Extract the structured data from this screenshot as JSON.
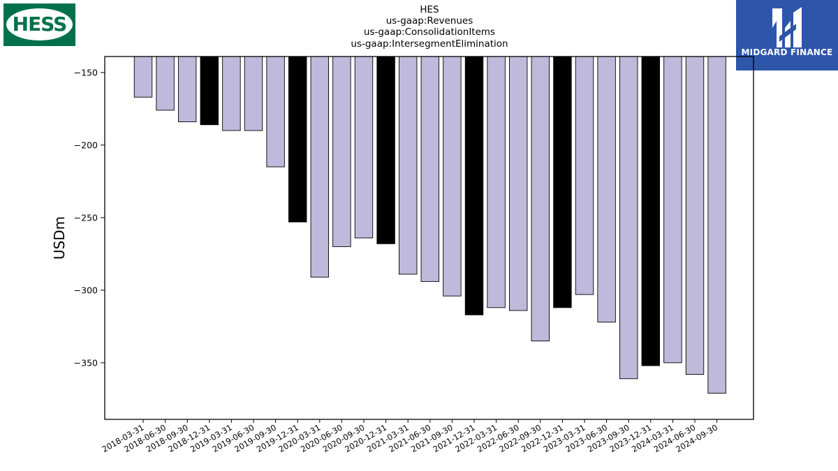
{
  "header": {
    "company": "HES",
    "concept": "us-gaap:Revenues",
    "axis": "us-gaap:ConsolidationItems",
    "member": "us-gaap:IntersegmentElimination"
  },
  "logos": {
    "left_text": "HESS",
    "right_text": "MIDGARD FINANCE"
  },
  "colors": {
    "bar_default": "#bfbadb",
    "bar_q4": "#000000",
    "hess_green": "#00714b",
    "midgard_blue": "#2d55aa"
  },
  "chart_data": {
    "type": "bar",
    "title": "HES\nus-gaap:Revenues\nus-gaap:ConsolidationItems\nus-gaap:IntersegmentElimination",
    "xlabel": "",
    "ylabel": "USDm",
    "ylim": [
      -389,
      -139
    ],
    "yticks": [
      -150,
      -200,
      -250,
      -300,
      -350
    ],
    "grid": false,
    "categories": [
      "2018-03-31",
      "2018-06-30",
      "2018-09-30",
      "2018-12-31",
      "2019-03-31",
      "2019-06-30",
      "2019-09-30",
      "2019-12-31",
      "2020-03-31",
      "2020-06-30",
      "2020-09-30",
      "2020-12-31",
      "2021-03-31",
      "2021-06-30",
      "2021-09-30",
      "2021-12-31",
      "2022-03-31",
      "2022-06-30",
      "2022-09-30",
      "2022-12-31",
      "2023-03-31",
      "2023-06-30",
      "2023-09-30",
      "2023-12-31",
      "2024-03-31",
      "2024-06-30",
      "2024-09-30"
    ],
    "values": [
      -167,
      -176,
      -184,
      -186,
      -190,
      -190,
      -215,
      -253,
      -291,
      -270,
      -264,
      -268,
      -289,
      -294,
      -304,
      -317,
      -312,
      -314,
      -335,
      -312,
      -303,
      -322,
      -361,
      -352,
      -350,
      -358,
      -371
    ],
    "highlight_q4": true
  }
}
